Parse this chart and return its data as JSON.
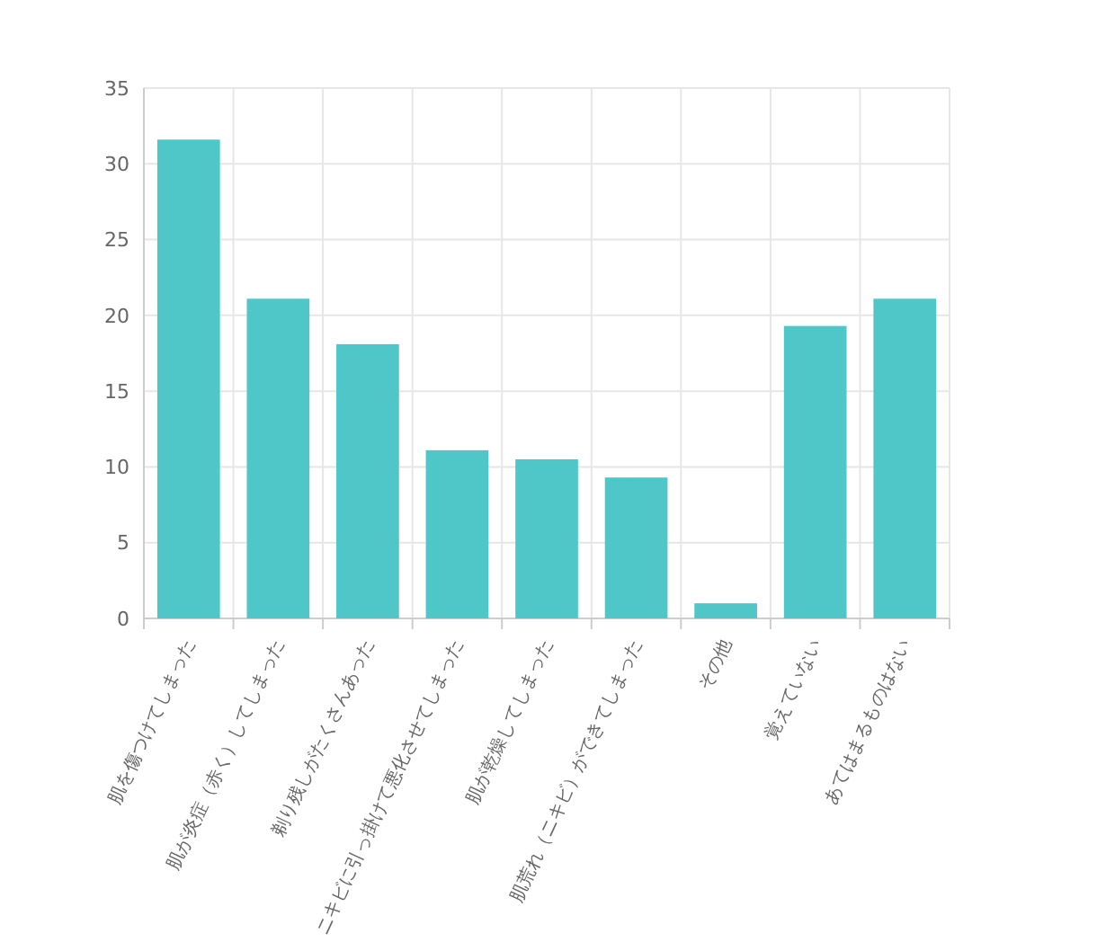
{
  "chart_data": {
    "type": "bar",
    "categories": [
      "肌を傷つけてしまった",
      "肌が炎症（赤く）してしまった",
      "剃り残しがたくさんあった",
      "ニキビに引っ掛けて悪化させてしまった",
      "肌が乾燥してしまった",
      "肌荒れ（ニキビ）ができてしまった",
      "その他",
      "覚えていない",
      "あてはまるものはない"
    ],
    "values": [
      31.6,
      21.1,
      18.1,
      11.1,
      10.5,
      9.3,
      1.0,
      19.3,
      21.1
    ],
    "color": "#4fc7c9",
    "ylim": [
      0,
      35
    ],
    "yticks": [
      0,
      5,
      10,
      15,
      20,
      25,
      30,
      35
    ],
    "grid": true
  }
}
